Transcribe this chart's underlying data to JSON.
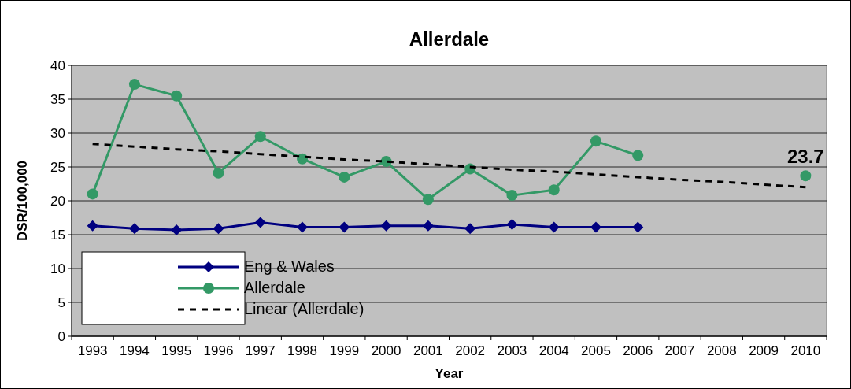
{
  "chart_data": {
    "type": "line",
    "title": "Allerdale",
    "xlabel": "Year",
    "ylabel": "DSR/100,000",
    "categories": [
      "1993",
      "1994",
      "1995",
      "1996",
      "1997",
      "1998",
      "1999",
      "2000",
      "2001",
      "2002",
      "2003",
      "2004",
      "2005",
      "2006",
      "2007",
      "2008",
      "2009",
      "2010"
    ],
    "ylim": [
      0,
      40
    ],
    "yticks": [
      0,
      5,
      10,
      15,
      20,
      25,
      30,
      35,
      40
    ],
    "grid": "y",
    "legend": "bottom left",
    "series": [
      {
        "name": "Eng & Wales",
        "color": "#000080",
        "marker": "diamond",
        "line_style": "solid",
        "values": [
          16.3,
          15.9,
          15.7,
          15.9,
          16.8,
          16.1,
          16.1,
          16.3,
          16.3,
          15.9,
          16.5,
          16.1,
          16.1,
          16.1,
          null,
          null,
          null,
          null
        ]
      },
      {
        "name": "Allerdale",
        "color": "#339966",
        "marker": "circle",
        "line_style": "solid",
        "values": [
          21.0,
          37.2,
          35.5,
          24.1,
          29.5,
          26.2,
          23.5,
          25.8,
          20.2,
          24.7,
          20.8,
          21.6,
          28.8,
          26.7,
          null,
          null,
          null,
          23.7
        ],
        "value_labels": [
          null,
          null,
          null,
          null,
          null,
          null,
          null,
          null,
          null,
          null,
          null,
          null,
          null,
          null,
          null,
          null,
          null,
          "23.7"
        ]
      },
      {
        "name": "Linear (Allerdale)",
        "color": "#000000",
        "marker": "none",
        "line_style": "dashed",
        "values": [
          28.4,
          28.0,
          27.6,
          27.3,
          26.9,
          26.5,
          26.1,
          25.8,
          25.4,
          25.0,
          24.6,
          24.3,
          23.9,
          23.5,
          23.1,
          22.8,
          22.4,
          22.0
        ]
      }
    ]
  }
}
